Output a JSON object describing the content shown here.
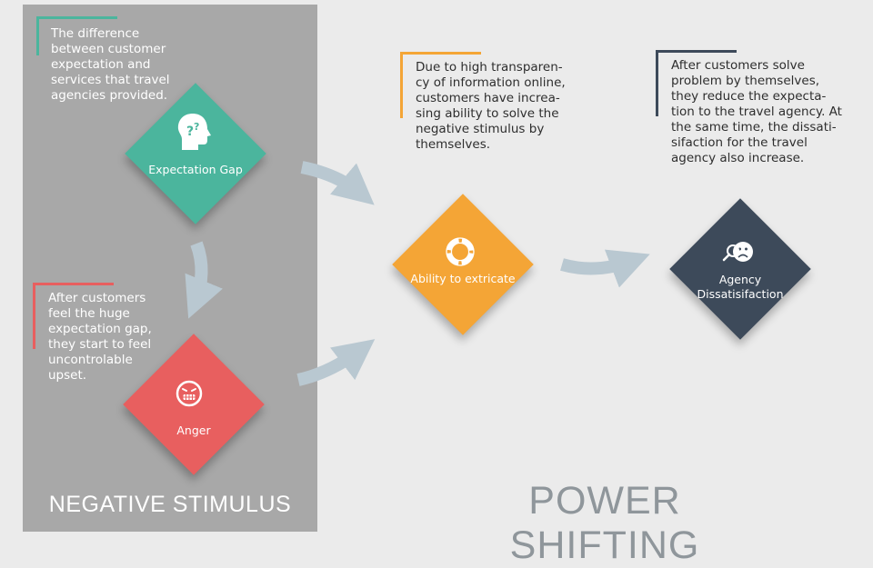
{
  "panel": {
    "label": "NEGATIVE STIMULUS"
  },
  "section_label": "POWER SHIFTING",
  "colors": {
    "teal": "#4bb59d",
    "coral": "#e85f5f",
    "orange": "#f4a536",
    "slate": "#3d4a5a",
    "arrow": "#b9c8d1",
    "panel": "#a8a8a8"
  },
  "nodes": {
    "expectation_gap": {
      "label": "Expectation Gap",
      "icon": "head-question-icon"
    },
    "anger": {
      "label": "Anger",
      "icon": "angry-face-icon"
    },
    "extricate": {
      "label": "Ability to extricate",
      "icon": "lifebuoy-icon"
    },
    "dissatisfaction": {
      "line1": "Agency",
      "line2": "Dissatisifaction",
      "icon": "magnifier-face-icon"
    }
  },
  "notes": {
    "gap": [
      "The difference",
      "between customer",
      "expectation and",
      "services that travel",
      "agencies provided."
    ],
    "anger": [
      "After customers",
      "feel the huge",
      "expectation gap,",
      "they start to feel",
      "uncontrolable",
      "upset."
    ],
    "extricate": [
      "Due to high transparen-",
      "cy of information online,",
      "customers have increa-",
      "sing ability to solve the",
      "negative stimulus by",
      "themselves."
    ],
    "dissatisfaction": [
      "After customers solve",
      "problem by themselves,",
      "they reduce the expecta-",
      "tion to the travel agency. At",
      "the same time, the dissati-",
      "sifaction for the travel",
      "agency also increase."
    ]
  }
}
